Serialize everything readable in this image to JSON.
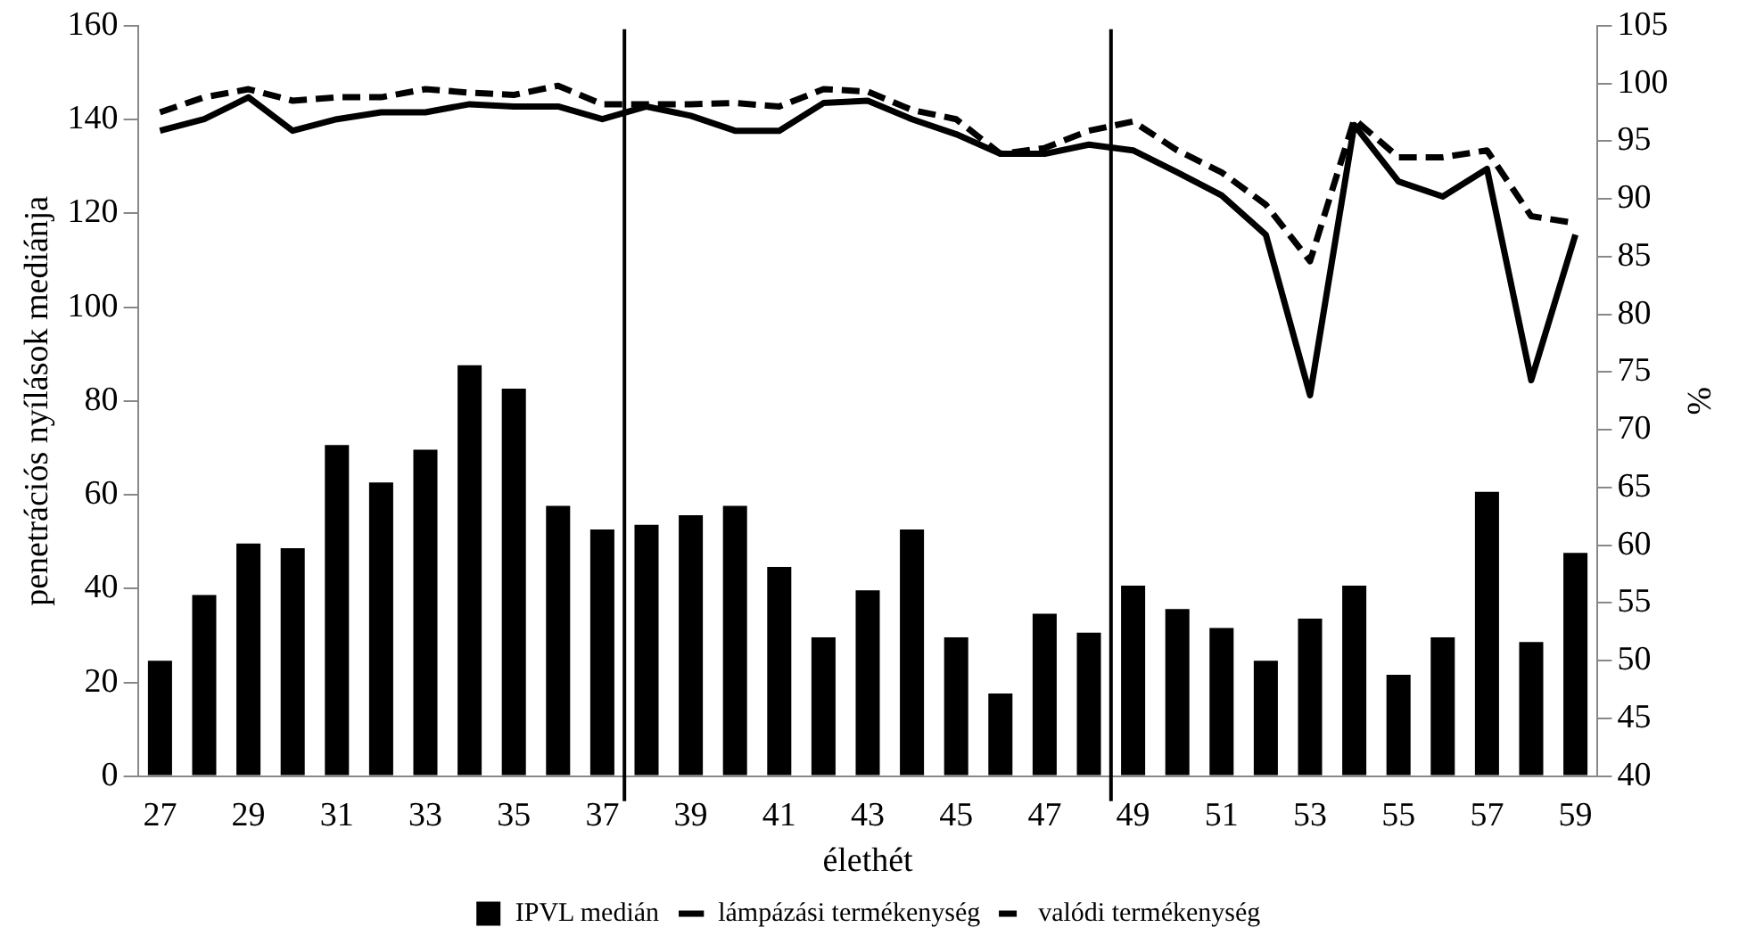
{
  "chart_data": {
    "type": "bar",
    "xlabel": "élethét",
    "ylabel": "penetrációs nyílások mediánja",
    "y2label": "%",
    "x": [
      27,
      28,
      29,
      30,
      31,
      32,
      33,
      34,
      35,
      36,
      37,
      38,
      39,
      40,
      41,
      42,
      43,
      44,
      45,
      46,
      47,
      48,
      49,
      50,
      51,
      52,
      53,
      54,
      55,
      56,
      57,
      58,
      59
    ],
    "xlim": [
      26.5,
      59.5
    ],
    "xticks": [
      27,
      29,
      31,
      33,
      35,
      37,
      39,
      41,
      43,
      45,
      47,
      49,
      51,
      53,
      55,
      57,
      59
    ],
    "ylim": [
      0,
      160
    ],
    "yticks": [
      0,
      20,
      40,
      60,
      80,
      100,
      120,
      140,
      160
    ],
    "y2lim": [
      40,
      105
    ],
    "y2ticks": [
      40,
      45,
      50,
      55,
      60,
      65,
      70,
      75,
      80,
      85,
      90,
      95,
      100,
      105
    ],
    "series": [
      {
        "name": "IPVL medián",
        "color": "#000000",
        "values": [
          25,
          39,
          50,
          49,
          71,
          63,
          70,
          88,
          83,
          58,
          53,
          54,
          56,
          58,
          45,
          30,
          40,
          53,
          30,
          18,
          35,
          31,
          41,
          36,
          32,
          25,
          34,
          41,
          22,
          30,
          61,
          29,
          48
        ]
      },
      {
        "name": "lámpázási termékenység",
        "type": "line",
        "axis": "y2",
        "color": "#000000",
        "line_style": "solid",
        "values": [
          95.9,
          96.9,
          98.8,
          95.9,
          96.9,
          97.5,
          97.5,
          98.2,
          98,
          98,
          96.9,
          98,
          97.2,
          95.9,
          95.9,
          98.3,
          98.5,
          96.9,
          95.6,
          93.9,
          93.9,
          94.7,
          94.2,
          92.3,
          90.3,
          86.9,
          73,
          96.4,
          91.5,
          90.2,
          92.6,
          74.3,
          86.9
        ]
      },
      {
        "name": "valódi termékenység",
        "type": "line",
        "axis": "y2",
        "color": "#000000",
        "line_style": "dashed",
        "values": [
          97.5,
          98.8,
          99.5,
          98.5,
          98.8,
          98.8,
          99.5,
          99.2,
          99,
          99.8,
          98.2,
          98.2,
          98.2,
          98.3,
          98,
          99.5,
          99.3,
          97.7,
          96.9,
          93.9,
          94.4,
          95.9,
          96.7,
          94.2,
          92.3,
          89.5,
          84.6,
          96.9,
          93.6,
          93.6,
          94.2,
          88.5,
          87.9
        ]
      }
    ],
    "ref_lines": [
      {
        "axis": "x",
        "value": 37.5,
        "color": "#000000"
      },
      {
        "axis": "x",
        "value": 48.5,
        "color": "#000000"
      }
    ],
    "legend": "bottom",
    "grid": false,
    "marker": "none"
  }
}
